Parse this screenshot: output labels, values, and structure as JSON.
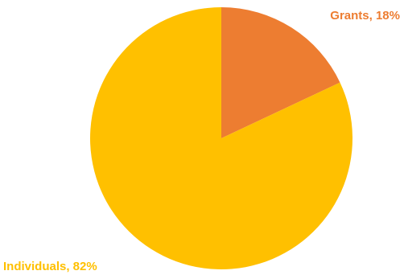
{
  "chart_data": {
    "type": "pie",
    "slices": [
      {
        "label": "Grants",
        "value": 18,
        "display": "Grants, 18%",
        "color": "#ED7D31"
      },
      {
        "label": "Individuals",
        "value": 82,
        "display": "Individuals,  82%",
        "color": "#FFC000"
      }
    ],
    "legend": "none",
    "data_labels": "outside"
  }
}
